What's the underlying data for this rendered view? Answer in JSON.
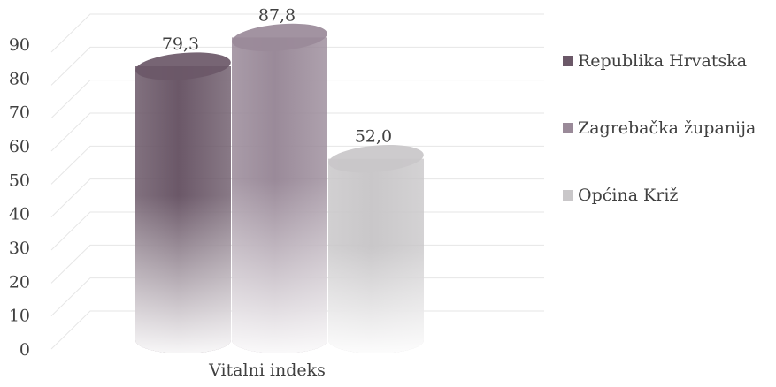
{
  "chart_data": {
    "type": "bar",
    "categories": [
      "Vitalni indeks"
    ],
    "series": [
      {
        "name": "Republika Hrvatska",
        "values": [
          79.3
        ],
        "label": "79,3",
        "color": "#6b5868"
      },
      {
        "name": "Zagrebačka županija",
        "values": [
          87.8
        ],
        "label": "87,8",
        "color": "#9a8a99"
      },
      {
        "name": "Općina Križ",
        "values": [
          52.0
        ],
        "label": "52,0",
        "color": "#c9c7c9"
      }
    ],
    "ylim": [
      0,
      90
    ],
    "yticks": [
      "0",
      "10",
      "20",
      "30",
      "40",
      "50",
      "60",
      "70",
      "80",
      "90"
    ],
    "title": "",
    "xlabel": "",
    "ylabel": "",
    "grid": true,
    "legend_position": "right",
    "style": "3d-cylinder"
  }
}
